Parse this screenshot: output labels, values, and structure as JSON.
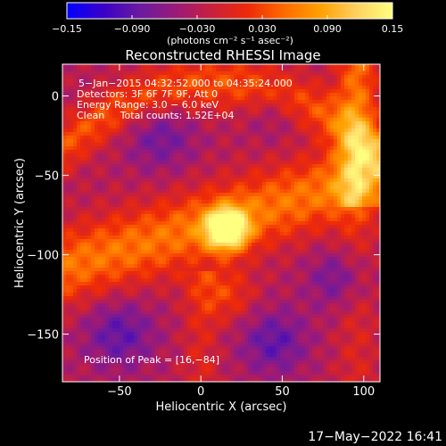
{
  "chart_data": {
    "type": "heatmap",
    "title": "Reconstructed RHESSI Image",
    "xlabel": "Heliocentric X (arcsec)",
    "ylabel": "Heliocentric Y (arcsec)",
    "xlim": [
      -85,
      110
    ],
    "ylim": [
      -180,
      20
    ],
    "x_ticks": [
      -50,
      0,
      50,
      100
    ],
    "y_ticks": [
      0,
      -50,
      -100,
      -150
    ],
    "x_tick_labels": [
      "−50",
      "0",
      "50",
      "100"
    ],
    "y_tick_labels": [
      "0",
      "−50",
      "−100",
      "−150"
    ],
    "grid": false,
    "colorbar": {
      "min": -0.15,
      "max": 0.15,
      "tick_values": [
        -0.15,
        -0.09,
        -0.03,
        0.03,
        0.09,
        0.15
      ],
      "tick_labels": [
        "−0.15",
        "−0.090",
        "−0.030",
        "0.030",
        "0.090",
        "0.15"
      ],
      "units": "(photons cm⁻² s⁻¹ asec⁻²)",
      "colormap": [
        "#0000ff",
        "#3a00c8",
        "#6a1aa0",
        "#9a1a7a",
        "#c8203c",
        "#ee2a08",
        "#ff6a00",
        "#ffa000",
        "#ffd060",
        "#ffff80"
      ]
    },
    "peak": {
      "x": 16,
      "y": -84,
      "value": 0.15
    },
    "annotations": [
      "5−Jan−2015 04:32:52.000 to 04:35:24.000",
      "Detectors: 3F 6F 7F 9F, Att 0",
      "Energy Range: 3.0 − 6.0 keV",
      "Clean     Total counts: 1.52E+04",
      "Position of Peak = [16,−84]"
    ]
  },
  "footer": {
    "timestamp": "17−May−2022 16:41"
  }
}
